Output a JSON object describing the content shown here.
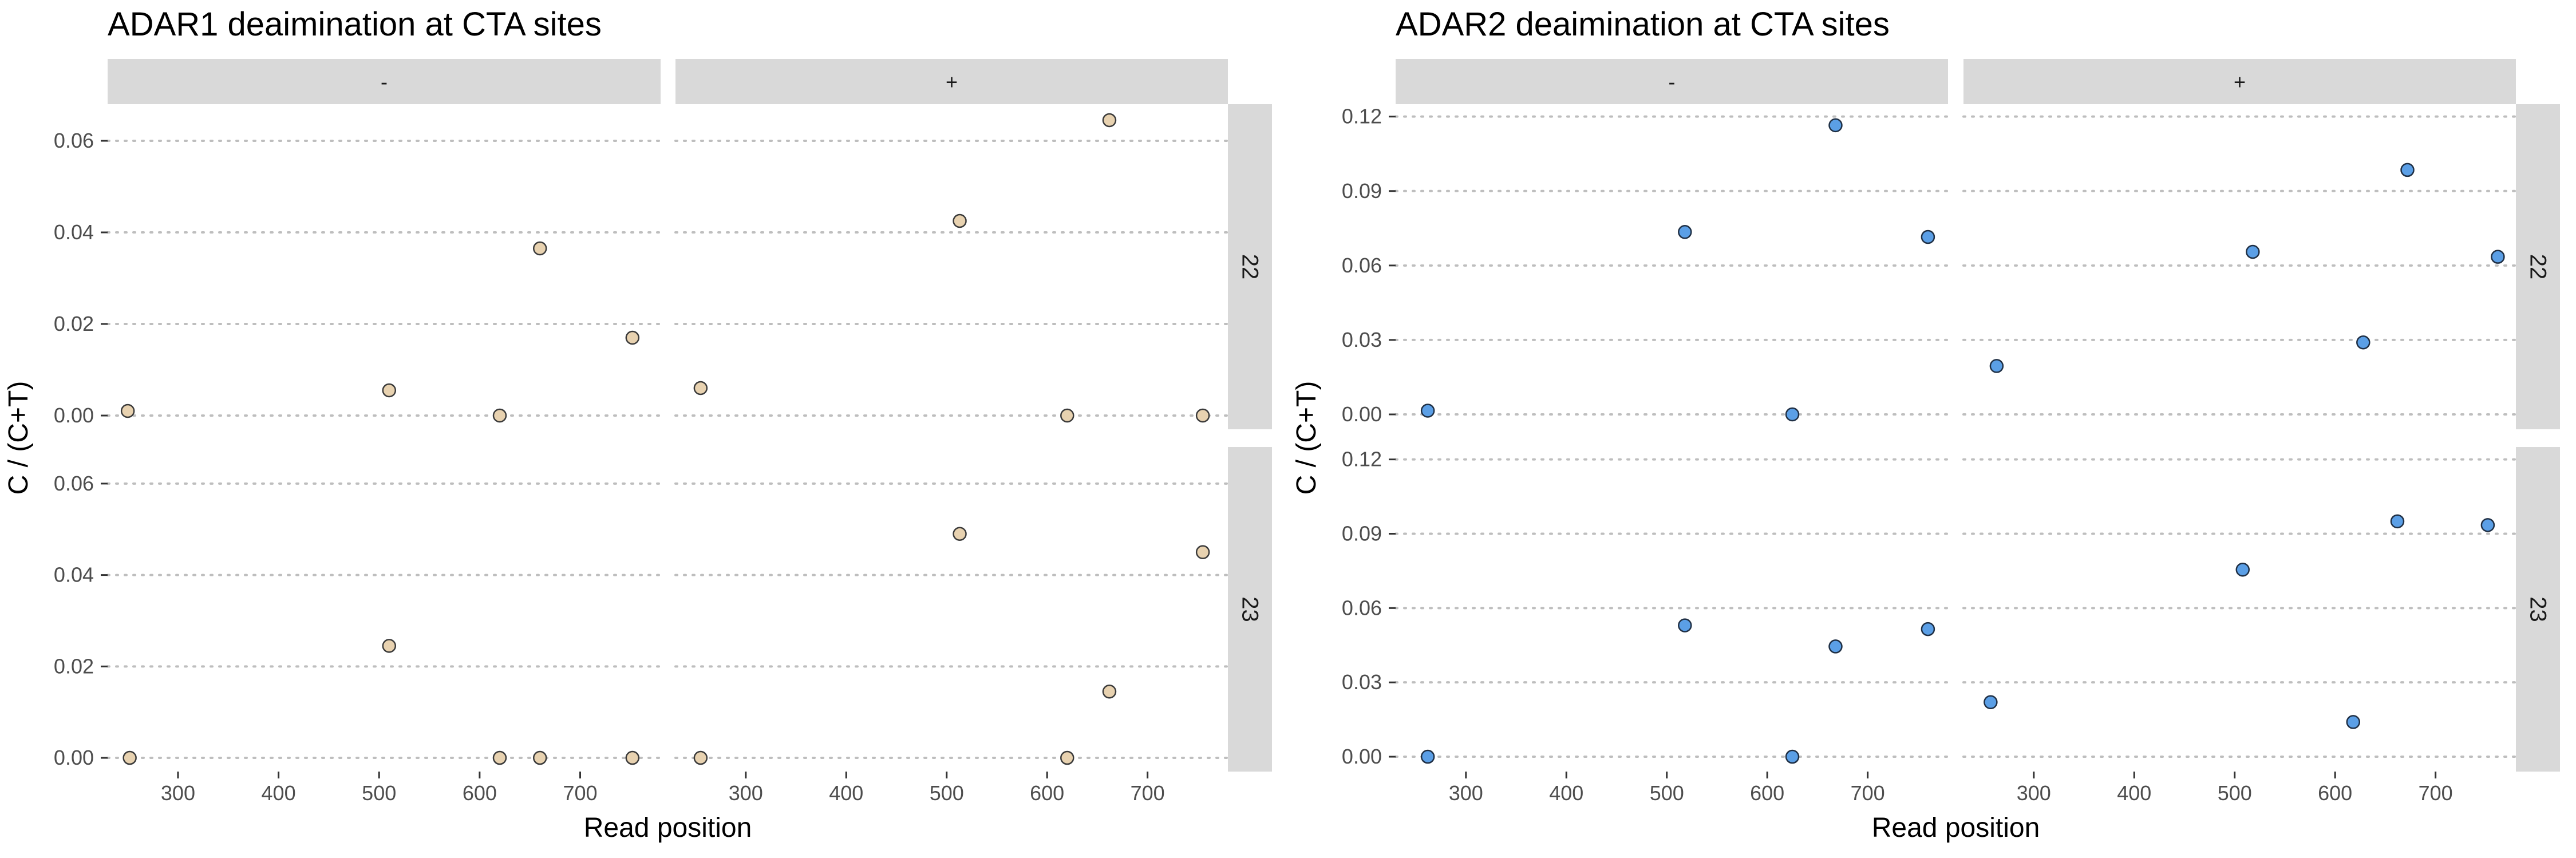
{
  "chart_data": [
    {
      "type": "scatter",
      "title": "ADAR1 deaimination at CTA sites",
      "xlabel": "Read position",
      "ylabel": "C / (C+T)",
      "xlim": [
        230,
        780
      ],
      "ylim": [
        -0.003,
        0.068
      ],
      "xticks": [
        300,
        400,
        500,
        600,
        700
      ],
      "yticks": [
        0.0,
        0.02,
        0.04,
        0.06
      ],
      "ytick_labels": [
        "0.00",
        "0.02",
        "0.04",
        "0.06"
      ],
      "grid": "horizontal dotted",
      "point_color": "#E8D2B0",
      "point_edge_color": "#3a3a3a",
      "col_facets": [
        "-",
        "+"
      ],
      "row_facets": [
        "22",
        "23"
      ],
      "panels": [
        {
          "col": "-",
          "row": "22",
          "x": [
            250,
            510,
            620,
            660,
            752
          ],
          "y": [
            0.001,
            0.0055,
            0.0,
            0.0365,
            0.017
          ]
        },
        {
          "col": "+",
          "row": "22",
          "x": [
            255,
            513,
            620,
            662,
            755
          ],
          "y": [
            0.006,
            0.0425,
            0.0,
            0.0645,
            0.0
          ]
        },
        {
          "col": "-",
          "row": "23",
          "x": [
            252,
            510,
            620,
            660,
            752
          ],
          "y": [
            0.0,
            0.0245,
            0.0,
            0.0,
            0.0
          ]
        },
        {
          "col": "+",
          "row": "23",
          "x": [
            255,
            513,
            620,
            662,
            755
          ],
          "y": [
            0.0,
            0.049,
            0.0,
            0.0145,
            0.045
          ]
        }
      ]
    },
    {
      "type": "scatter",
      "title": "ADAR2 deaimination at CTA sites",
      "xlabel": "Read position",
      "ylabel": "C / (C+T)",
      "xlim": [
        230,
        780
      ],
      "ylim": [
        -0.006,
        0.125
      ],
      "xticks": [
        300,
        400,
        500,
        600,
        700
      ],
      "yticks": [
        0.0,
        0.03,
        0.06,
        0.09,
        0.12
      ],
      "ytick_labels": [
        "0.00",
        "0.03",
        "0.06",
        "0.09",
        "0.12"
      ],
      "grid": "horizontal dotted",
      "point_color": "#5B9FE6",
      "point_edge_color": "#1f2f44",
      "col_facets": [
        "-",
        "+"
      ],
      "row_facets": [
        "22",
        "23"
      ],
      "panels": [
        {
          "col": "-",
          "row": "22",
          "x": [
            262,
            518,
            625,
            668,
            760
          ],
          "y": [
            0.0015,
            0.0735,
            0.0,
            0.1165,
            0.0715
          ]
        },
        {
          "col": "+",
          "row": "22",
          "x": [
            263,
            518,
            628,
            672,
            762
          ],
          "y": [
            0.0195,
            0.0655,
            0.029,
            0.0985,
            0.0635
          ]
        },
        {
          "col": "-",
          "row": "23",
          "x": [
            262,
            518,
            625,
            668,
            760
          ],
          "y": [
            0.0,
            0.053,
            0.0,
            0.0445,
            0.0515
          ]
        },
        {
          "col": "+",
          "row": "23",
          "x": [
            257,
            508,
            618,
            662,
            752
          ],
          "y": [
            0.022,
            0.0755,
            0.014,
            0.095,
            0.0935
          ]
        }
      ]
    }
  ]
}
